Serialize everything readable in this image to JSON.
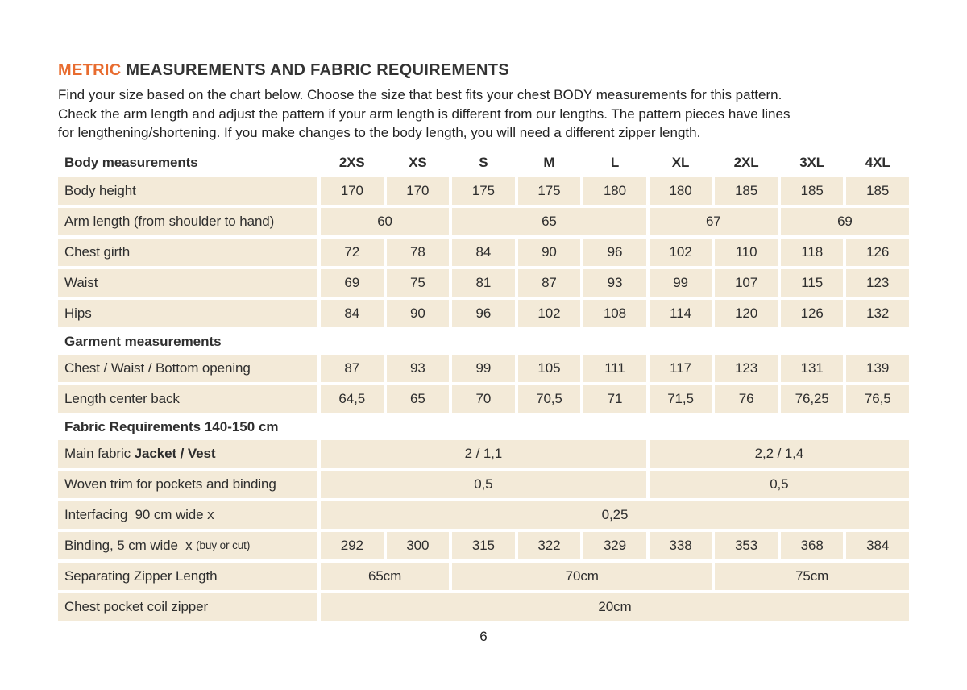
{
  "colors": {
    "accent": "#e86c2f",
    "cell_bg": "#f3ead8",
    "text": "#2e2e2e"
  },
  "header": {
    "title_accent": "METRIC",
    "title_rest": " MEASUREMENTS AND FABRIC REQUIREMENTS"
  },
  "intro": {
    "lines": [
      "Find your size based on the chart below. Choose the size that best fits your chest BODY measurements for this pattern.",
      "Check the arm length and adjust the pattern if your arm length is different from our lengths. The pattern pieces have lines",
      "for lengthening/shortening. If you make changes to the body length, you will need a different zipper length."
    ]
  },
  "table": {
    "sizes": [
      "2XS",
      "XS",
      "S",
      "M",
      "L",
      "XL",
      "2XL",
      "3XL",
      "4XL"
    ],
    "rows": [
      {
        "kind": "sizes",
        "label": [
          {
            "t": "Body measurements"
          }
        ]
      },
      {
        "kind": "data",
        "label": [
          {
            "t": "Body height"
          }
        ],
        "cells": [
          {
            "s": 1,
            "v": "170"
          },
          {
            "s": 1,
            "v": "170"
          },
          {
            "s": 1,
            "v": "175"
          },
          {
            "s": 1,
            "v": "175"
          },
          {
            "s": 1,
            "v": "180"
          },
          {
            "s": 1,
            "v": "180"
          },
          {
            "s": 1,
            "v": "185"
          },
          {
            "s": 1,
            "v": "185"
          },
          {
            "s": 1,
            "v": "185"
          }
        ]
      },
      {
        "kind": "data",
        "label": [
          {
            "t": "Arm length (from shoulder to hand)"
          }
        ],
        "cells": [
          {
            "s": 2,
            "v": "60"
          },
          {
            "s": 3,
            "v": "65"
          },
          {
            "s": 2,
            "v": "67"
          },
          {
            "s": 2,
            "v": "69"
          }
        ]
      },
      {
        "kind": "data",
        "label": [
          {
            "t": "Chest girth"
          }
        ],
        "cells": [
          {
            "s": 1,
            "v": "72"
          },
          {
            "s": 1,
            "v": "78"
          },
          {
            "s": 1,
            "v": "84"
          },
          {
            "s": 1,
            "v": "90"
          },
          {
            "s": 1,
            "v": "96"
          },
          {
            "s": 1,
            "v": "102"
          },
          {
            "s": 1,
            "v": "110"
          },
          {
            "s": 1,
            "v": "118"
          },
          {
            "s": 1,
            "v": "126"
          }
        ]
      },
      {
        "kind": "data",
        "label": [
          {
            "t": "Waist"
          }
        ],
        "cells": [
          {
            "s": 1,
            "v": "69"
          },
          {
            "s": 1,
            "v": "75"
          },
          {
            "s": 1,
            "v": "81"
          },
          {
            "s": 1,
            "v": "87"
          },
          {
            "s": 1,
            "v": "93"
          },
          {
            "s": 1,
            "v": "99"
          },
          {
            "s": 1,
            "v": "107"
          },
          {
            "s": 1,
            "v": "115"
          },
          {
            "s": 1,
            "v": "123"
          }
        ]
      },
      {
        "kind": "data",
        "label": [
          {
            "t": "Hips"
          }
        ],
        "cells": [
          {
            "s": 1,
            "v": "84"
          },
          {
            "s": 1,
            "v": "90"
          },
          {
            "s": 1,
            "v": "96"
          },
          {
            "s": 1,
            "v": "102"
          },
          {
            "s": 1,
            "v": "108"
          },
          {
            "s": 1,
            "v": "114"
          },
          {
            "s": 1,
            "v": "120"
          },
          {
            "s": 1,
            "v": "126"
          },
          {
            "s": 1,
            "v": "132"
          }
        ]
      },
      {
        "kind": "section",
        "label": [
          {
            "t": "Garment measurements"
          }
        ]
      },
      {
        "kind": "data",
        "label": [
          {
            "t": "Chest / Waist / Bottom opening"
          }
        ],
        "cells": [
          {
            "s": 1,
            "v": "87"
          },
          {
            "s": 1,
            "v": "93"
          },
          {
            "s": 1,
            "v": "99"
          },
          {
            "s": 1,
            "v": "105"
          },
          {
            "s": 1,
            "v": "111"
          },
          {
            "s": 1,
            "v": "117"
          },
          {
            "s": 1,
            "v": "123"
          },
          {
            "s": 1,
            "v": "131"
          },
          {
            "s": 1,
            "v": "139"
          }
        ]
      },
      {
        "kind": "data",
        "label": [
          {
            "t": "Length center back"
          }
        ],
        "cells": [
          {
            "s": 1,
            "v": "64,5"
          },
          {
            "s": 1,
            "v": "65"
          },
          {
            "s": 1,
            "v": "70"
          },
          {
            "s": 1,
            "v": "70,5"
          },
          {
            "s": 1,
            "v": "71"
          },
          {
            "s": 1,
            "v": "71,5"
          },
          {
            "s": 1,
            "v": "76"
          },
          {
            "s": 1,
            "v": "76,25"
          },
          {
            "s": 1,
            "v": "76,5"
          }
        ]
      },
      {
        "kind": "section",
        "label": [
          {
            "t": "Fabric Requirements 140-150 cm"
          }
        ]
      },
      {
        "kind": "data",
        "label": [
          {
            "t": "Main fabric "
          },
          {
            "t": "Jacket / Vest",
            "b": true
          }
        ],
        "cells": [
          {
            "s": 5,
            "v": "2 / 1,1"
          },
          {
            "s": 4,
            "v": "2,2 / 1,4"
          }
        ]
      },
      {
        "kind": "data",
        "label": [
          {
            "t": "Woven trim for pockets and binding"
          }
        ],
        "cells": [
          {
            "s": 5,
            "v": "0,5"
          },
          {
            "s": 4,
            "v": "0,5"
          }
        ]
      },
      {
        "kind": "data",
        "label": [
          {
            "t": "Interfacing  90 cm wide x"
          }
        ],
        "cells": [
          {
            "s": 9,
            "v": "0,25"
          }
        ]
      },
      {
        "kind": "data",
        "label": [
          {
            "t": "Binding, 5 cm wide  x "
          },
          {
            "t": "(buy or cut)",
            "small": true
          }
        ],
        "cells": [
          {
            "s": 1,
            "v": "292"
          },
          {
            "s": 1,
            "v": "300"
          },
          {
            "s": 1,
            "v": "315"
          },
          {
            "s": 1,
            "v": "322"
          },
          {
            "s": 1,
            "v": "329"
          },
          {
            "s": 1,
            "v": "338"
          },
          {
            "s": 1,
            "v": "353"
          },
          {
            "s": 1,
            "v": "368"
          },
          {
            "s": 1,
            "v": "384"
          }
        ]
      },
      {
        "kind": "data",
        "label": [
          {
            "t": "Separating Zipper Length"
          }
        ],
        "cells": [
          {
            "s": 2,
            "v": "65cm"
          },
          {
            "s": 4,
            "v": "70cm"
          },
          {
            "s": 3,
            "v": "75cm"
          }
        ]
      },
      {
        "kind": "data",
        "label": [
          {
            "t": "Chest pocket coil zipper"
          }
        ],
        "cells": [
          {
            "s": 9,
            "v": "20cm"
          }
        ]
      }
    ]
  },
  "footer": {
    "page_number": "6"
  }
}
